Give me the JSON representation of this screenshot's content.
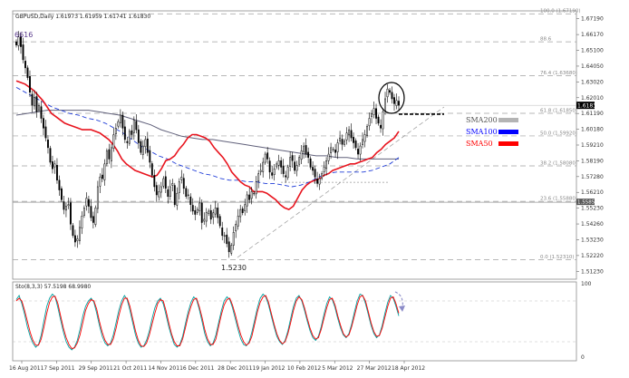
{
  "chart_data": [
    {
      "type": "candlestick",
      "title": "GBPUSD,Daily  1.61973 1.61959 1.61741 1.61830",
      "x_tick_labels": [
        "16 Aug 2011",
        "7 Sep 2011",
        "29 Sep 2011",
        "21 Oct 2011",
        "14 Nov 2011",
        "6 Dec 2011",
        "28 Dec 2011",
        "19 Jan 2012",
        "10 Feb 2012",
        "5 Mar 2012",
        "27 Mar 2012",
        "18 Apr 2012"
      ],
      "y_tick_labels": [
        "1.67190",
        "1.66170",
        "1.65100",
        "1.64050",
        "1.63020",
        "1.62010",
        "1.61190",
        "1.60180",
        "1.59210",
        "1.58190",
        "1.57280",
        "1.56210",
        "1.55230",
        "1.54260",
        "1.53230",
        "1.52220",
        "1.51230"
      ],
      "ylim": [
        1.5112,
        1.676
      ],
      "current_price_label": "1.61830",
      "hline_label": "1.55850",
      "annotations": {
        "high_label": "6616",
        "low_label": "1.5230"
      },
      "fib_levels": [
        {
          "label": "100.0 (1.67190)",
          "value": 1.6742
        },
        {
          "label": "88.6",
          "value": 1.657
        },
        {
          "label": "76.4 (1.63680)",
          "value": 1.6362
        },
        {
          "label": "61.8 (1.61850)",
          "value": 1.6131
        },
        {
          "label": "50.0 (1.59920)",
          "value": 1.5992
        },
        {
          "label": "38.2 (1.58080)",
          "value": 1.5808
        },
        {
          "label": "23.6 (1.55880)",
          "value": 1.559
        },
        {
          "label": "0.0 (1.52310)",
          "value": 1.5231
        }
      ],
      "legend": [
        {
          "name": "SMA200",
          "color": "#b4b4b4"
        },
        {
          "name": "SMA100",
          "color": "#0000ff"
        },
        {
          "name": "SMA50",
          "color": "#ff0000"
        }
      ],
      "close_series": [
        1.655,
        1.66,
        1.654,
        1.646,
        1.641,
        1.635,
        1.626,
        1.618,
        1.623,
        1.614,
        1.618,
        1.61,
        1.604,
        1.598,
        1.592,
        1.583,
        1.579,
        1.582,
        1.572,
        1.566,
        1.56,
        1.554,
        1.556,
        1.557,
        1.545,
        1.538,
        1.534,
        1.536,
        1.543,
        1.55,
        1.555,
        1.561,
        1.556,
        1.549,
        1.546,
        1.555,
        1.568,
        1.574,
        1.573,
        1.582,
        1.59,
        1.585,
        1.592,
        1.6,
        1.604,
        1.608,
        1.612,
        1.604,
        1.597,
        1.595,
        1.602,
        1.6,
        1.609,
        1.603,
        1.595,
        1.589,
        1.593,
        1.597,
        1.589,
        1.583,
        1.575,
        1.568,
        1.563,
        1.565,
        1.568,
        1.573,
        1.567,
        1.562,
        1.568,
        1.57,
        1.557,
        1.564,
        1.571,
        1.574,
        1.567,
        1.562,
        1.563,
        1.557,
        1.553,
        1.551,
        1.554,
        1.558,
        1.546,
        1.548,
        1.552,
        1.553,
        1.548,
        1.552,
        1.555,
        1.549,
        1.544,
        1.538,
        1.538,
        1.533,
        1.528,
        1.532,
        1.54,
        1.545,
        1.55,
        1.554,
        1.552,
        1.557,
        1.563,
        1.56,
        1.565,
        1.564,
        1.571,
        1.576,
        1.578,
        1.583,
        1.588,
        1.585,
        1.577,
        1.575,
        1.579,
        1.582,
        1.584,
        1.58,
        1.576,
        1.574,
        1.58,
        1.586,
        1.584,
        1.578,
        1.581,
        1.586,
        1.59,
        1.593,
        1.588,
        1.586,
        1.58,
        1.578,
        1.574,
        1.57,
        1.573,
        1.576,
        1.58,
        1.584,
        1.588,
        1.592,
        1.591,
        1.589,
        1.595,
        1.598,
        1.594,
        1.596,
        1.601,
        1.603,
        1.598,
        1.595,
        1.592,
        1.588,
        1.593,
        1.597,
        1.6,
        1.605,
        1.61,
        1.613,
        1.616,
        1.61,
        1.607,
        1.604,
        1.614,
        1.622,
        1.628,
        1.626,
        1.622,
        1.619,
        1.621,
        1.618
      ],
      "sma50": [
        1.633,
        1.632,
        1.631,
        1.629,
        1.627,
        1.624,
        1.621,
        1.617,
        1.613,
        1.611,
        1.609,
        1.607,
        1.606,
        1.605,
        1.604,
        1.603,
        1.603,
        1.603,
        1.602,
        1.601,
        1.599,
        1.597,
        1.594,
        1.59,
        1.585,
        1.582,
        1.58,
        1.578,
        1.577,
        1.576,
        1.575,
        1.574,
        1.575,
        1.579,
        1.584,
        1.585,
        1.587,
        1.591,
        1.594,
        1.598,
        1.6,
        1.6,
        1.599,
        1.598,
        1.596,
        1.592,
        1.589,
        1.586,
        1.582,
        1.577,
        1.574,
        1.571,
        1.569,
        1.568,
        1.565,
        1.565,
        1.565,
        1.564,
        1.562,
        1.56,
        1.557,
        1.555,
        1.554,
        1.556,
        1.561,
        1.566,
        1.569,
        1.571,
        1.572,
        1.573,
        1.575,
        1.576,
        1.578,
        1.579,
        1.58,
        1.581,
        1.582,
        1.582,
        1.583,
        1.584,
        1.585,
        1.586,
        1.589,
        1.591,
        1.594,
        1.596,
        1.598,
        1.602
      ],
      "sma100": [
        1.629,
        1.626,
        1.623,
        1.62,
        1.617,
        1.615,
        1.613,
        1.612,
        1.61,
        1.609,
        1.607,
        1.604,
        1.601,
        1.597,
        1.593,
        1.59,
        1.587,
        1.585,
        1.582,
        1.58,
        1.578,
        1.576,
        1.575,
        1.573,
        1.572,
        1.572,
        1.571,
        1.571,
        1.57,
        1.57,
        1.569,
        1.568,
        1.569,
        1.571,
        1.574,
        1.576,
        1.577,
        1.577,
        1.577,
        1.577,
        1.578,
        1.58,
        1.582,
        1.586
      ],
      "sma200": [
        1.612,
        1.613,
        1.614,
        1.615,
        1.615,
        1.615,
        1.615,
        1.615,
        1.614,
        1.613,
        1.612,
        1.61,
        1.608,
        1.606,
        1.603,
        1.601,
        1.599,
        1.598,
        1.597,
        1.597,
        1.596,
        1.595,
        1.594,
        1.593,
        1.592,
        1.591,
        1.59,
        1.589,
        1.588,
        1.587,
        1.587,
        1.586,
        1.586,
        1.585,
        1.585,
        1.585,
        1.585,
        1.585
      ],
      "levels": {
        "resistance": 1.6131,
        "support_box": 1.5707
      }
    },
    {
      "type": "line",
      "title": "Sto(8,3,3) 57.5198 68.9980",
      "ylim": [
        0,
        100
      ],
      "y_tick_labels": [
        "100",
        "0"
      ],
      "series": [
        {
          "name": "",
          "color": "#00a0a0",
          "values": [
            82,
            88,
            76,
            60,
            42,
            28,
            18,
            12,
            16,
            30,
            52,
            72,
            84,
            90,
            86,
            70,
            52,
            34,
            20,
            12,
            8,
            12,
            22,
            38,
            58,
            72,
            80,
            84,
            78,
            62,
            44,
            28,
            18,
            14,
            18,
            30,
            48,
            66,
            80,
            88,
            82,
            66,
            48,
            30,
            18,
            12,
            14,
            22,
            36,
            54,
            70,
            80,
            84,
            76,
            60,
            42,
            28,
            16,
            12,
            16,
            28,
            46,
            64,
            78,
            86,
            82,
            68,
            50,
            32,
            20,
            14,
            18,
            30,
            48,
            66,
            80,
            86,
            82,
            70,
            54,
            38,
            24,
            16,
            14,
            20,
            34,
            52,
            70,
            84,
            90,
            86,
            74,
            58,
            42,
            28,
            20,
            16,
            22,
            36,
            54,
            72,
            84,
            88,
            80,
            66,
            50,
            36,
            26,
            22,
            28,
            42,
            60,
            76,
            86,
            82,
            70,
            54,
            40,
            30,
            26,
            32,
            46,
            64,
            80,
            90,
            88,
            76,
            60,
            44,
            32,
            26,
            30,
            44,
            62,
            78,
            88,
            84,
            72,
            58
          ]
        },
        {
          "name": "",
          "color": "#ff0000",
          "values": [
            80,
            84,
            80,
            66,
            50,
            34,
            22,
            15,
            15,
            24,
            42,
            62,
            78,
            86,
            87,
            76,
            58,
            40,
            26,
            16,
            10,
            11,
            18,
            30,
            48,
            66,
            76,
            82,
            80,
            68,
            50,
            34,
            22,
            16,
            16,
            24,
            40,
            58,
            74,
            84,
            84,
            72,
            54,
            36,
            22,
            14,
            13,
            18,
            30,
            46,
            62,
            76,
            82,
            80,
            66,
            48,
            32,
            20,
            14,
            14,
            24,
            40,
            58,
            72,
            82,
            84,
            72,
            56,
            38,
            24,
            16,
            16,
            24,
            42,
            60,
            74,
            82,
            84,
            74,
            60,
            44,
            30,
            20,
            15,
            18,
            28,
            46,
            64,
            78,
            86,
            88,
            78,
            62,
            46,
            32,
            22,
            17,
            20,
            32,
            48,
            66,
            80,
            86,
            82,
            70,
            54,
            40,
            29,
            24,
            26,
            38,
            54,
            70,
            82,
            84,
            74,
            58,
            44,
            32,
            27,
            30,
            42,
            58,
            74,
            86,
            88,
            80,
            64,
            48,
            35,
            28,
            29,
            40,
            56,
            72,
            84,
            86,
            76,
            62
          ]
        }
      ]
    }
  ]
}
